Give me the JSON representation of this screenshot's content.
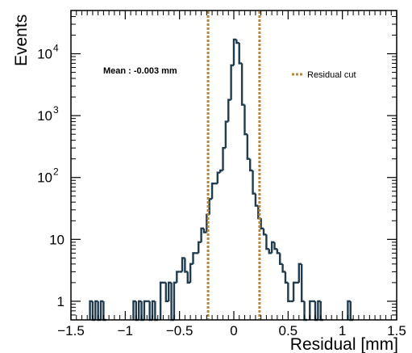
{
  "chart_data": {
    "type": "histogram",
    "xlabel": "Residual [mm]",
    "ylabel": "Events",
    "xlim": [
      -1.5,
      1.5
    ],
    "ylim": [
      0.5,
      50000
    ],
    "y_scale": "log",
    "bin_width": 0.025,
    "x_tick_values": [
      -1.5,
      -1,
      -0.5,
      0,
      0.5,
      1,
      1.5
    ],
    "x_tick_labels": [
      "−1.5",
      "−1",
      "−0.5",
      "0",
      "0.5",
      "1",
      "1.5"
    ],
    "y_tick_values": [
      1,
      10,
      100,
      1000,
      10000
    ],
    "annotation": "Mean : -0.003 mm",
    "legend": [
      {
        "label": "Residual cut",
        "style": "dotted",
        "color": "#b5863a"
      }
    ],
    "cut_lines": [
      -0.237,
      0.237
    ],
    "colors": {
      "histogram": "#1f3b4d",
      "cut": "#b5863a"
    },
    "bins": [
      [
        -1.325,
        1
      ],
      [
        -1.3,
        0
      ],
      [
        -1.275,
        1
      ],
      [
        -1.25,
        0
      ],
      [
        -1.225,
        1
      ],
      [
        -1.2,
        0
      ],
      [
        -0.925,
        1
      ],
      [
        -0.9,
        0
      ],
      [
        -0.875,
        1
      ],
      [
        -0.85,
        0
      ],
      [
        -0.825,
        1
      ],
      [
        -0.8,
        1
      ],
      [
        -0.775,
        0
      ],
      [
        -0.75,
        1
      ],
      [
        -0.725,
        0
      ],
      [
        -0.675,
        2
      ],
      [
        -0.65,
        2
      ],
      [
        -0.625,
        1
      ],
      [
        -0.6,
        2
      ],
      [
        -0.575,
        0
      ],
      [
        -0.55,
        2
      ],
      [
        -0.525,
        3
      ],
      [
        -0.5,
        3
      ],
      [
        -0.475,
        5
      ],
      [
        -0.45,
        3
      ],
      [
        -0.425,
        2
      ],
      [
        -0.4,
        4
      ],
      [
        -0.375,
        6
      ],
      [
        -0.35,
        6
      ],
      [
        -0.325,
        9
      ],
      [
        -0.3,
        15
      ],
      [
        -0.275,
        13
      ],
      [
        -0.25,
        25
      ],
      [
        -0.225,
        45
      ],
      [
        -0.2,
        80
      ],
      [
        -0.175,
        80
      ],
      [
        -0.15,
        120
      ],
      [
        -0.125,
        130
      ],
      [
        -0.1,
        300
      ],
      [
        -0.075,
        800
      ],
      [
        -0.05,
        1800
      ],
      [
        -0.025,
        6500
      ],
      [
        0.0,
        17000
      ],
      [
        0.025,
        15000
      ],
      [
        0.05,
        7000
      ],
      [
        0.075,
        1500
      ],
      [
        0.1,
        500
      ],
      [
        0.125,
        200
      ],
      [
        0.15,
        130
      ],
      [
        0.175,
        55
      ],
      [
        0.2,
        35
      ],
      [
        0.225,
        22
      ],
      [
        0.25,
        15
      ],
      [
        0.275,
        12
      ],
      [
        0.3,
        7
      ],
      [
        0.325,
        6
      ],
      [
        0.35,
        9
      ],
      [
        0.375,
        7
      ],
      [
        0.4,
        6
      ],
      [
        0.425,
        4
      ],
      [
        0.45,
        3
      ],
      [
        0.475,
        2
      ],
      [
        0.5,
        1
      ],
      [
        0.525,
        1
      ],
      [
        0.55,
        2
      ],
      [
        0.575,
        2
      ],
      [
        0.6,
        4
      ],
      [
        0.625,
        1
      ],
      [
        0.65,
        0
      ],
      [
        0.7,
        1
      ],
      [
        0.725,
        1
      ],
      [
        0.75,
        0
      ],
      [
        0.775,
        1
      ],
      [
        0.8,
        0
      ],
      [
        1.05,
        1
      ],
      [
        1.075,
        0
      ]
    ]
  }
}
